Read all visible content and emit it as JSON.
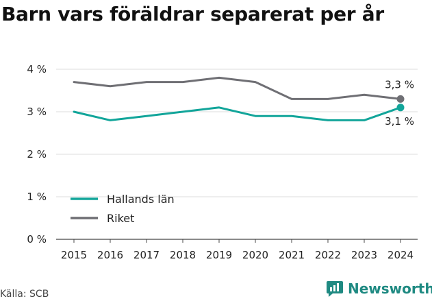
{
  "title": "Barn vars föräldrar separerat per år",
  "source": "Källa: SCB",
  "brand": {
    "name": "Newsworthy",
    "icon": "newsworthy-logo-icon",
    "color": "#1f8a82"
  },
  "chart_data": {
    "type": "line",
    "title": "Barn vars föräldrar separerat per år",
    "xlabel": "",
    "ylabel": "",
    "ylim": [
      0,
      4
    ],
    "yticks": [
      "0 %",
      "1 %",
      "2 %",
      "3 %",
      "4 %"
    ],
    "x": [
      "2015",
      "2016",
      "2017",
      "2018",
      "2019",
      "2020",
      "2021",
      "2022",
      "2023",
      "2024"
    ],
    "grid": true,
    "legend": "bottom-left",
    "series": [
      {
        "name": "Hallands län",
        "color": "#12a59a",
        "values": [
          3.0,
          2.8,
          2.9,
          3.0,
          3.1,
          2.9,
          2.9,
          2.8,
          2.8,
          3.1
        ],
        "end_label": "3,1 %"
      },
      {
        "name": "Riket",
        "color": "#6f6f74",
        "values": [
          3.7,
          3.6,
          3.7,
          3.7,
          3.8,
          3.7,
          3.3,
          3.3,
          3.4,
          3.3
        ],
        "end_label": "3,3 %"
      }
    ]
  }
}
